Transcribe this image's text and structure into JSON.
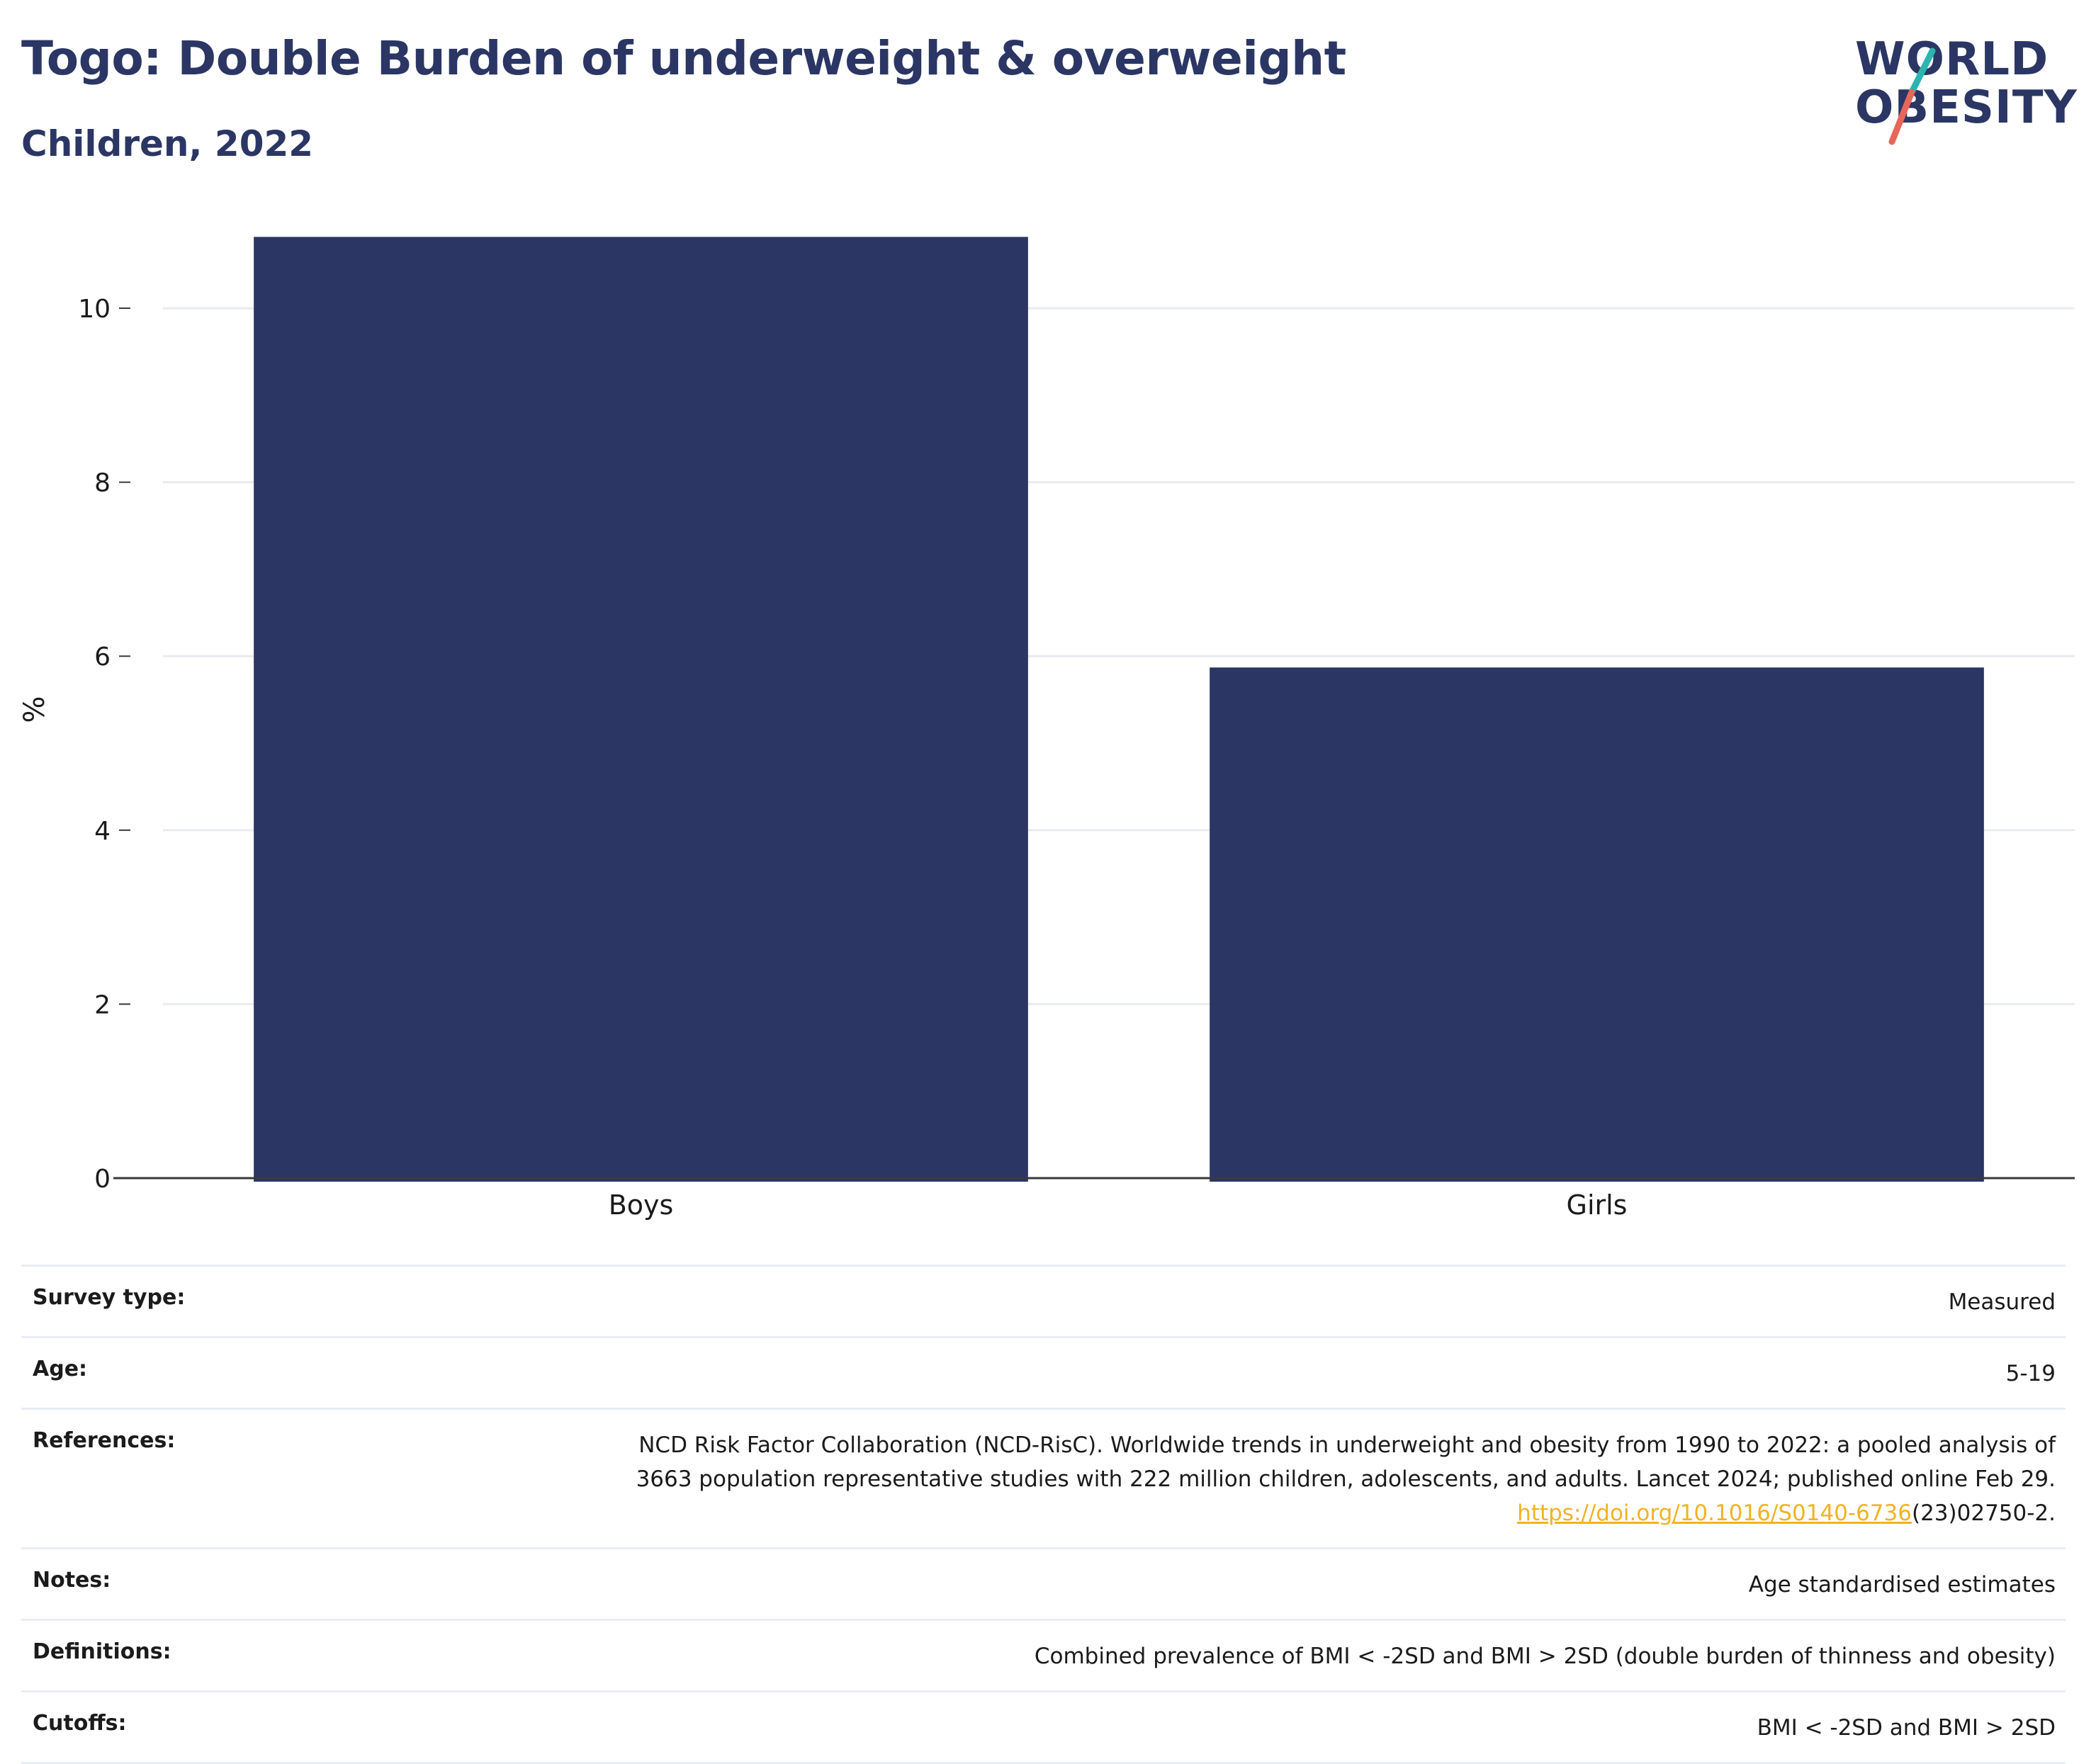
{
  "header": {
    "title": "Togo: Double Burden of underweight & overweight",
    "subtitle": "Children, 2022"
  },
  "logo": {
    "line1": "WORLD",
    "line2": "OBESITY",
    "text_color": "#2b3664",
    "slash_colors": [
      "#2bb5b0",
      "#e8665a"
    ]
  },
  "colors": {
    "bar": "#2b3664",
    "grid": "#e9ebf0",
    "axis": "#3a3a3a",
    "link": "#f0b323"
  },
  "chart_data": {
    "type": "bar",
    "categories": [
      "Boys",
      "Girls"
    ],
    "values": [
      10.82,
      5.87
    ],
    "title": "",
    "xlabel": "",
    "ylabel": "%",
    "ylim": [
      0,
      11.1
    ],
    "yticks": [
      0,
      2,
      4,
      6,
      8,
      10
    ],
    "grid": true,
    "legend": "none"
  },
  "details": [
    {
      "key": "Survey type:",
      "value": "Measured"
    },
    {
      "key": "Age:",
      "value": "5-19"
    },
    {
      "key": "References:",
      "value_lines": [
        "NCD Risk Factor Collaboration (NCD-RisC). Worldwide trends in underweight and obesity from 1990 to 2022: a pooled analysis of",
        "3663 population representative studies with 222 million children, adolescents, and adults. Lancet 2024; published online Feb 29."
      ],
      "link_text": "https://doi.org/10.1016/S0140-6736",
      "link_suffix": "(23)02750-2."
    },
    {
      "key": "Notes:",
      "value": "Age standardised estimates"
    },
    {
      "key": "Definitions:",
      "value": "Combined prevalence of BMI < -2SD and BMI > 2SD (double burden of thinness and obesity)"
    },
    {
      "key": "Cutoffs:",
      "value": "BMI < -2SD and BMI > 2SD"
    }
  ]
}
